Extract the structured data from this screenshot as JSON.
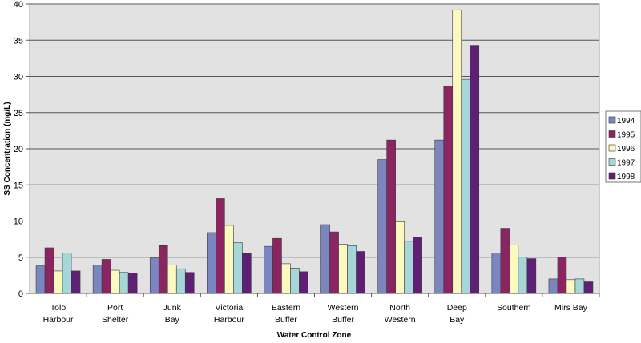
{
  "chart_data": {
    "type": "bar",
    "title": "",
    "xlabel": "Water Control Zone",
    "ylabel": "SS Concentration (mg/L)",
    "ylim": [
      0,
      40
    ],
    "yticks": [
      "0",
      "5",
      "10",
      "15",
      "20",
      "25",
      "30",
      "35",
      "40"
    ],
    "grid": true,
    "legend_position": "right",
    "categories": [
      [
        "Tolo",
        "Harbour"
      ],
      [
        "Port",
        "Shelter"
      ],
      [
        "Junk",
        "Bay"
      ],
      [
        "Victoria",
        "Harbour"
      ],
      [
        "Eastern",
        "Buffer"
      ],
      [
        "Western",
        "Buffer"
      ],
      [
        "North",
        "Western"
      ],
      [
        "Deep",
        "Bay"
      ],
      [
        "Southern"
      ],
      [
        "Mirs Bay"
      ]
    ],
    "series": [
      {
        "name": "1994",
        "color": "#7b86c0",
        "values": [
          3.8,
          3.9,
          4.9,
          8.4,
          6.5,
          9.5,
          18.5,
          21.2,
          5.6,
          2.0
        ]
      },
      {
        "name": "1995",
        "color": "#8b2561",
        "values": [
          6.3,
          4.7,
          6.6,
          13.1,
          7.6,
          8.5,
          21.2,
          28.7,
          9.0,
          5.0
        ]
      },
      {
        "name": "1996",
        "color": "#fbf8c0",
        "values": [
          3.1,
          3.2,
          3.9,
          9.4,
          4.1,
          6.8,
          9.9,
          39.2,
          6.7,
          1.9
        ]
      },
      {
        "name": "1997",
        "color": "#a6d7d8",
        "values": [
          5.6,
          2.9,
          3.4,
          7.0,
          3.5,
          6.6,
          7.2,
          29.6,
          5.0,
          2.0
        ]
      },
      {
        "name": "1998",
        "color": "#5f1f75",
        "values": [
          3.1,
          2.8,
          2.9,
          5.5,
          3.0,
          5.8,
          7.8,
          34.3,
          4.8,
          1.6
        ]
      }
    ]
  }
}
